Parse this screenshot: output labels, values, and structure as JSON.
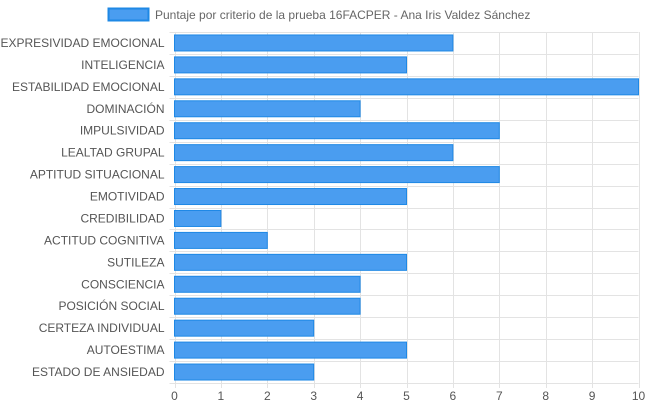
{
  "chart_data": {
    "type": "bar",
    "orientation": "horizontal",
    "categories": [
      "EXPRESIVIDAD EMOCIONAL",
      "INTELIGENCIA",
      "ESTABILIDAD EMOCIONAL",
      "DOMINACIÓN",
      "IMPULSIVIDAD",
      "LEALTAD GRUPAL",
      "APTITUD SITUACIONAL",
      "EMOTIVIDAD",
      "CREDIBILIDAD",
      "ACTITUD COGNITIVA",
      "SUTILEZA",
      "CONSCIENCIA",
      "POSICIÓN SOCIAL",
      "CERTEZA INDIVIDUAL",
      "AUTOESTIMA",
      "ESTADO DE ANSIEDAD"
    ],
    "series": [
      {
        "name": "Puntaje por criterio de la prueba 16FACPER - Ana Iris Valdez Sánchez",
        "values": [
          6,
          5,
          10,
          4,
          7,
          6,
          7,
          5,
          1,
          2,
          5,
          4,
          4,
          3,
          5,
          3
        ],
        "color": "#4a9df0",
        "border_color": "#1e88e5"
      }
    ],
    "xlim": [
      0,
      10
    ],
    "x_ticks": [
      0,
      1,
      2,
      3,
      4,
      5,
      6,
      7,
      8,
      9,
      10
    ],
    "grid": true,
    "legend": "top-center"
  }
}
